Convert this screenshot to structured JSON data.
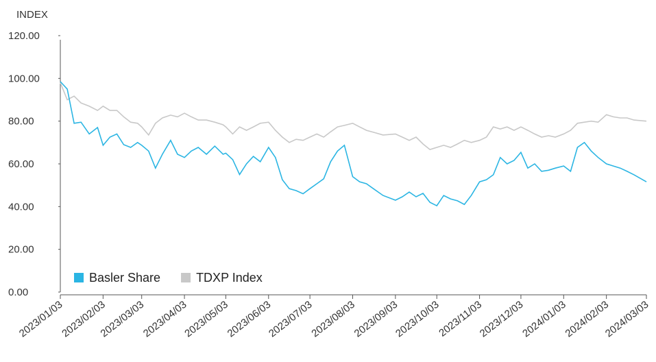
{
  "chart_data": {
    "type": "line",
    "ylabel": "INDEX",
    "x": [
      "2023/01/03",
      "2023/01/08",
      "2023/01/13",
      "2023/01/18",
      "2023/01/24",
      "2023/01/30",
      "2023/02/03",
      "2023/02/08",
      "2023/02/13",
      "2023/02/18",
      "2023/02/23",
      "2023/02/28",
      "2023/03/03",
      "2023/03/08",
      "2023/03/13",
      "2023/03/18",
      "2023/03/24",
      "2023/03/29",
      "2023/04/03",
      "2023/04/08",
      "2023/04/13",
      "2023/04/19",
      "2023/04/25",
      "2023/05/01",
      "2023/05/03",
      "2023/05/08",
      "2023/05/13",
      "2023/05/18",
      "2023/05/23",
      "2023/05/28",
      "2023/06/03",
      "2023/06/08",
      "2023/06/13",
      "2023/06/18",
      "2023/06/23",
      "2023/06/28",
      "2023/07/03",
      "2023/07/08",
      "2023/07/13",
      "2023/07/18",
      "2023/07/23",
      "2023/07/28",
      "2023/08/03",
      "2023/08/08",
      "2023/08/13",
      "2023/08/18",
      "2023/08/25",
      "2023/09/03",
      "2023/09/08",
      "2023/09/13",
      "2023/09/18",
      "2023/09/23",
      "2023/09/28",
      "2023/10/03",
      "2023/10/08",
      "2023/10/13",
      "2023/10/18",
      "2023/10/23",
      "2023/10/28",
      "2023/11/03",
      "2023/11/08",
      "2023/11/13",
      "2023/11/18",
      "2023/11/23",
      "2023/11/28",
      "2023/12/03",
      "2023/12/08",
      "2023/12/13",
      "2023/12/18",
      "2023/12/23",
      "2023/12/28",
      "2024/01/03",
      "2024/01/08",
      "2024/01/13",
      "2024/01/18",
      "2024/01/23",
      "2024/01/28",
      "2024/02/03",
      "2024/02/08",
      "2024/02/13",
      "2024/02/18",
      "2024/02/23",
      "2024/03/03"
    ],
    "series": [
      {
        "name": "Basler Share",
        "color": "#2bb5e3",
        "values": [
          98.5,
          95,
          79,
          79.5,
          74,
          77,
          68.7,
          72.5,
          74,
          69,
          67.7,
          70,
          68.7,
          66,
          58,
          64.5,
          71,
          64.5,
          63,
          66,
          67.7,
          64.5,
          68.3,
          64.5,
          65,
          62,
          55,
          60,
          63.5,
          61,
          67.7,
          63,
          52.6,
          48.4,
          47.5,
          46,
          48.4,
          50.7,
          53,
          61,
          66,
          68.7,
          54,
          51.6,
          50.7,
          48.4,
          45.2,
          43,
          44.6,
          46.8,
          44.6,
          46.2,
          42,
          40.4,
          45.2,
          43.6,
          42.7,
          41,
          45.2,
          51.6,
          52.6,
          54.9,
          63,
          60,
          61.6,
          65.4,
          58,
          60,
          56.5,
          57,
          58,
          59,
          56.5,
          67.7,
          70,
          66,
          63,
          60,
          59,
          58,
          56.5,
          54.9,
          51.6
        ]
      },
      {
        "name": "TDXP Index",
        "color": "#c8c8c8",
        "values": [
          98,
          90,
          91.7,
          88.5,
          87,
          85,
          87,
          85,
          85,
          82,
          79.5,
          79,
          77.3,
          73.5,
          79,
          81.5,
          82.8,
          82,
          83.7,
          82,
          80.5,
          80.5,
          79.5,
          78.3,
          77.3,
          74,
          77.3,
          75.7,
          77.3,
          79,
          79.5,
          75.7,
          72.5,
          70,
          71.5,
          71,
          72.5,
          74,
          72.5,
          75,
          77.3,
          78,
          79,
          77.3,
          75.7,
          74.8,
          73.5,
          74,
          72.5,
          71,
          72.5,
          69.3,
          66.7,
          67.7,
          68.7,
          67.7,
          69.3,
          71,
          70,
          71,
          72.5,
          77.3,
          76.3,
          77.3,
          75.7,
          77.3,
          75.7,
          74,
          72.5,
          73.2,
          72.5,
          74,
          75.7,
          79,
          79.5,
          80,
          79.5,
          83,
          82,
          81.5,
          81.5,
          80.5,
          80
        ]
      }
    ],
    "xlim": [
      "2023/01/03",
      "2024/03/03"
    ],
    "xticks": [
      "2023/01/03",
      "2023/02/03",
      "2023/03/03",
      "2023/04/03",
      "2023/05/03",
      "2023/06/03",
      "2023/07/03",
      "2023/08/03",
      "2023/09/03",
      "2023/10/03",
      "2023/11/03",
      "2023/12/03",
      "2024/01/03",
      "2024/02/03",
      "2024/03/03"
    ],
    "ylim": [
      0,
      120
    ],
    "yticks": [
      {
        "value": 0,
        "label": "0.00"
      },
      {
        "value": 20,
        "label": "20.00"
      },
      {
        "value": 40,
        "label": "40.00"
      },
      {
        "value": 60,
        "label": "60.00"
      },
      {
        "value": 80,
        "label": "80.00"
      },
      {
        "value": 100,
        "label": "100.00"
      },
      {
        "value": 120,
        "label": "120.00"
      }
    ],
    "legend": "lower left"
  }
}
